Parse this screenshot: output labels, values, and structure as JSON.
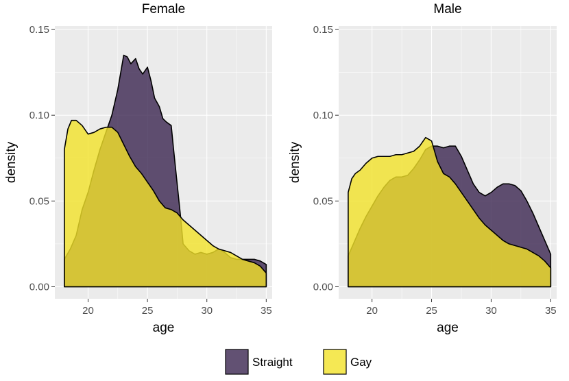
{
  "chart_data": {
    "type": "area",
    "subtype": "density",
    "colors": {
      "Straight": "#3B2650",
      "Gay": "#F2E229"
    },
    "fill_opacity": 0.8,
    "legend_position": "bottom",
    "legend": [
      {
        "name": "Straight",
        "color": "#3B2650"
      },
      {
        "name": "Gay",
        "color": "#F2E229"
      }
    ],
    "panels": [
      {
        "title": "Female",
        "xlabel": "age",
        "ylabel": "density",
        "xlim": [
          17.2,
          35.5
        ],
        "ylim": [
          -0.007,
          0.152
        ],
        "xticks": [
          20,
          25,
          30,
          35
        ],
        "xtick_labels": [
          "20",
          "25",
          "30",
          "35"
        ],
        "yticks": [
          0,
          0.05,
          0.1,
          0.15
        ],
        "ytick_labels": [
          "0.00",
          "0.05",
          "0.10",
          "0.15"
        ],
        "series": [
          {
            "name": "Straight",
            "x": [
              18,
              18.5,
              19,
              19.5,
              20,
              20.5,
              21,
              21.5,
              22,
              22.5,
              23,
              23.3,
              23.6,
              24,
              24.3,
              24.6,
              25,
              25.3,
              25.6,
              26,
              26.3,
              26.6,
              27,
              27.2,
              27.5,
              27.8,
              28,
              28.5,
              29,
              29.5,
              30,
              30.5,
              31,
              31.5,
              32,
              32.5,
              33,
              33.5,
              34,
              34.5,
              35
            ],
            "y": [
              0.016,
              0.022,
              0.03,
              0.045,
              0.055,
              0.068,
              0.08,
              0.09,
              0.1,
              0.115,
              0.135,
              0.134,
              0.13,
              0.133,
              0.127,
              0.124,
              0.128,
              0.12,
              0.11,
              0.105,
              0.098,
              0.096,
              0.094,
              0.08,
              0.06,
              0.04,
              0.025,
              0.021,
              0.019,
              0.02,
              0.019,
              0.02,
              0.022,
              0.02,
              0.017,
              0.016,
              0.016,
              0.016,
              0.016,
              0.015,
              0.013
            ]
          },
          {
            "name": "Gay",
            "x": [
              18,
              18.3,
              18.6,
              19,
              19.5,
              20,
              20.5,
              21,
              21.5,
              22,
              22.5,
              23,
              23.5,
              24,
              24.5,
              25,
              25.5,
              26,
              26.5,
              27,
              27.5,
              28,
              28.5,
              29,
              29.5,
              30,
              30.5,
              31,
              31.5,
              32,
              32.5,
              33,
              33.5,
              34,
              34.5,
              35
            ],
            "y": [
              0.08,
              0.092,
              0.097,
              0.097,
              0.094,
              0.089,
              0.09,
              0.092,
              0.093,
              0.093,
              0.09,
              0.083,
              0.076,
              0.07,
              0.066,
              0.061,
              0.056,
              0.05,
              0.046,
              0.045,
              0.043,
              0.039,
              0.036,
              0.033,
              0.03,
              0.027,
              0.024,
              0.022,
              0.021,
              0.02,
              0.018,
              0.016,
              0.015,
              0.014,
              0.012,
              0.008
            ]
          }
        ]
      },
      {
        "title": "Male",
        "xlabel": "age",
        "ylabel": "density",
        "xlim": [
          17.2,
          35.5
        ],
        "ylim": [
          -0.007,
          0.152
        ],
        "xticks": [
          20,
          25,
          30,
          35
        ],
        "xtick_labels": [
          "20",
          "25",
          "30",
          "35"
        ],
        "yticks": [
          0,
          0.05,
          0.1,
          0.15
        ],
        "ytick_labels": [
          "0.00",
          "0.05",
          "0.10",
          "0.15"
        ],
        "series": [
          {
            "name": "Straight",
            "x": [
              18,
              18.5,
              19,
              19.5,
              20,
              20.5,
              21,
              21.5,
              22,
              22.5,
              23,
              23.5,
              24,
              24.5,
              25,
              25.5,
              26,
              26.5,
              27,
              27.5,
              28,
              28.5,
              29,
              29.5,
              30,
              30.5,
              31,
              31.5,
              32,
              32.5,
              33,
              33.5,
              34,
              34.5,
              35
            ],
            "y": [
              0.018,
              0.026,
              0.034,
              0.041,
              0.047,
              0.053,
              0.058,
              0.062,
              0.064,
              0.064,
              0.065,
              0.069,
              0.074,
              0.08,
              0.082,
              0.082,
              0.081,
              0.082,
              0.082,
              0.076,
              0.068,
              0.06,
              0.055,
              0.053,
              0.055,
              0.058,
              0.06,
              0.06,
              0.059,
              0.056,
              0.05,
              0.043,
              0.035,
              0.027,
              0.019
            ]
          },
          {
            "name": "Gay",
            "x": [
              18,
              18.3,
              18.6,
              19,
              19.5,
              20,
              20.5,
              21,
              21.5,
              22,
              22.5,
              23,
              23.5,
              24,
              24.5,
              25,
              25.5,
              26,
              26.5,
              27,
              27.5,
              28,
              28.5,
              29,
              29.5,
              30,
              30.5,
              31,
              31.5,
              32,
              32.5,
              33,
              33.5,
              34,
              34.5,
              35
            ],
            "y": [
              0.055,
              0.063,
              0.066,
              0.068,
              0.072,
              0.075,
              0.076,
              0.076,
              0.076,
              0.077,
              0.077,
              0.078,
              0.079,
              0.082,
              0.087,
              0.085,
              0.073,
              0.066,
              0.064,
              0.06,
              0.055,
              0.05,
              0.045,
              0.04,
              0.036,
              0.033,
              0.03,
              0.027,
              0.025,
              0.024,
              0.023,
              0.022,
              0.02,
              0.018,
              0.015,
              0.011
            ]
          }
        ]
      }
    ]
  }
}
